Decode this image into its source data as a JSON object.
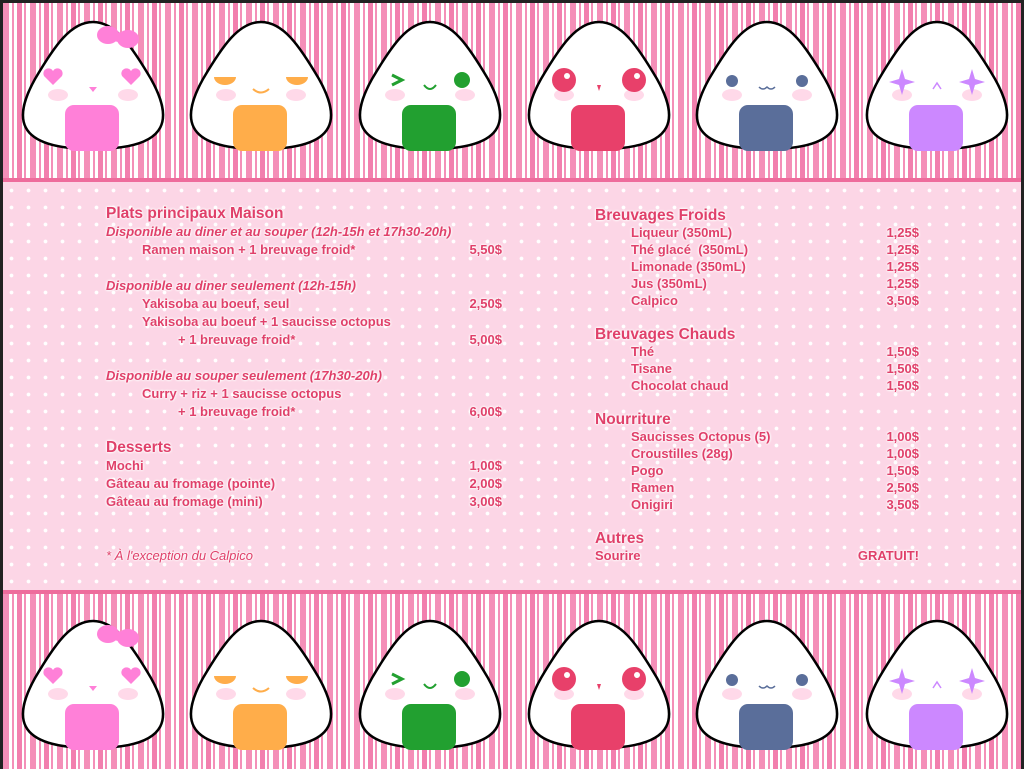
{
  "onigiri": [
    {
      "face": "hearts",
      "color": "#ff80d8",
      "bow": true
    },
    {
      "face": "sleepy",
      "color": "#ffad4a"
    },
    {
      "face": "wink",
      "color": "#22a030"
    },
    {
      "face": "sparkle",
      "color": "#e8406a"
    },
    {
      "face": "dots",
      "color": "#5a6e9a"
    },
    {
      "face": "stars",
      "color": "#cc88ff"
    }
  ],
  "colors": {
    "text": "#e0406a",
    "background": "#fcd6e6",
    "stripe": "#f48fb8"
  },
  "left": {
    "main_title": "Plats principaux Maison",
    "both_label": "Disponible au diner et au souper (12h-15h et 17h30-20h)",
    "both_items": [
      {
        "name": "Ramen maison + 1 breuvage froid*",
        "price": "5,50$"
      }
    ],
    "lunch_label": "Disponible au diner seulement (12h-15h)",
    "lunch_items": [
      {
        "name": "Yakisoba au boeuf, seul",
        "price": "2,50$"
      },
      {
        "name": "Yakisoba au boeuf + 1 saucisse octopus",
        "price": ""
      },
      {
        "name": "+ 1 breuvage froid*",
        "price": "5,00$"
      }
    ],
    "dinner_label": "Disponible au souper seulement (17h30-20h)",
    "dinner_items": [
      {
        "name": "Curry + riz + 1 saucisse octopus",
        "price": ""
      },
      {
        "name": "+ 1 breuvage froid*",
        "price": "6,00$"
      }
    ],
    "desserts_title": "Desserts",
    "desserts": [
      {
        "name": "Mochi",
        "price": "1,00$"
      },
      {
        "name": "Gâteau au fromage (pointe)",
        "price": "2,00$"
      },
      {
        "name": "Gâteau au fromage (mini)",
        "price": "3,00$"
      }
    ],
    "footnote": "* À l'exception du Calpico"
  },
  "right": {
    "cold_title": "Breuvages Froids",
    "cold": [
      {
        "name": "Liqueur (350mL)",
        "price": "1,25$"
      },
      {
        "name": "Thé glacé  (350mL)",
        "price": "1,25$"
      },
      {
        "name": "Limonade (350mL)",
        "price": "1,25$"
      },
      {
        "name": "Jus (350mL)",
        "price": "1,25$"
      },
      {
        "name": "Calpico",
        "price": "3,50$"
      }
    ],
    "hot_title": "Breuvages Chauds",
    "hot": [
      {
        "name": "Thé",
        "price": "1,50$"
      },
      {
        "name": "Tisane",
        "price": "1,50$"
      },
      {
        "name": "Chocolat chaud",
        "price": "1,50$"
      }
    ],
    "food_title": "Nourriture",
    "food": [
      {
        "name": "Saucisses Octopus (5)",
        "price": "1,00$"
      },
      {
        "name": "Croustilles (28g)",
        "price": "1,00$"
      },
      {
        "name": "Pogo",
        "price": "1,50$"
      },
      {
        "name": "Ramen",
        "price": "2,50$"
      },
      {
        "name": "Onigiri",
        "price": "3,50$"
      }
    ],
    "other_title": "Autres",
    "other": [
      {
        "name": "Sourire",
        "price": "GRATUIT!"
      }
    ]
  }
}
